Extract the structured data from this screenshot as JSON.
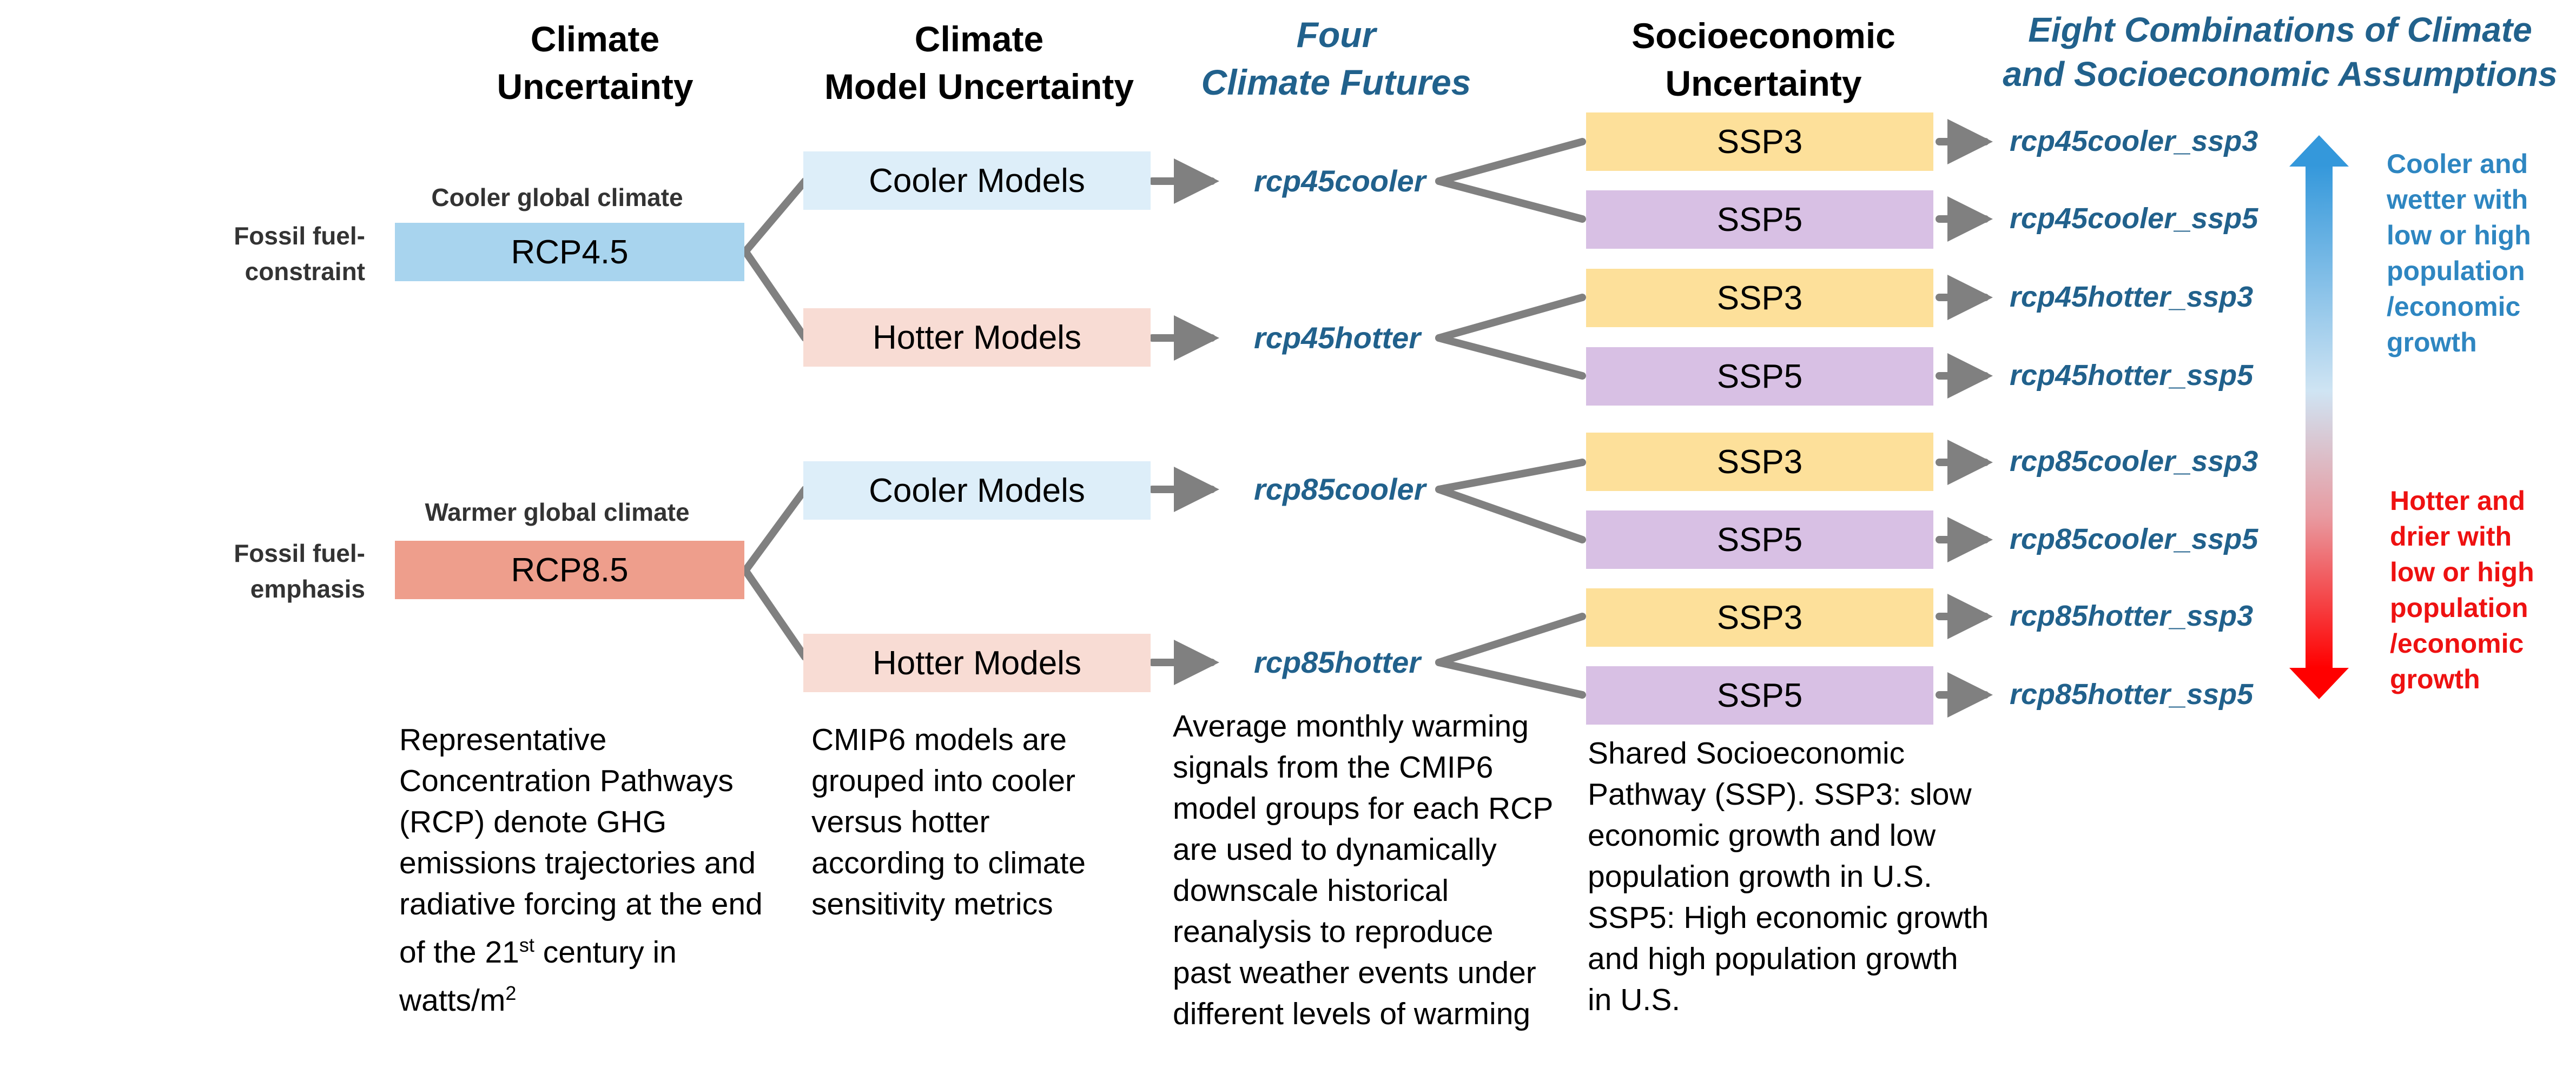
{
  "headers": {
    "climate": [
      "Climate",
      "Uncertainty"
    ],
    "model": [
      "Climate",
      "Model Uncertainty"
    ],
    "futures": [
      "Four",
      "Climate Futures"
    ],
    "socio": [
      "Socioeconomic",
      "Uncertainty"
    ],
    "combos": [
      "Eight Combinations of Climate",
      "and Socioeconomic Assumptions"
    ]
  },
  "rcp": {
    "rcp45": {
      "label": "RCP4.5",
      "above": "Cooler global climate",
      "side": [
        "Fossil fuel-",
        "constraint"
      ]
    },
    "rcp85": {
      "label": "RCP8.5",
      "above": "Warmer global climate",
      "side": [
        "Fossil fuel-",
        "emphasis"
      ]
    }
  },
  "models": {
    "cooler": "Cooler Models",
    "hotter": "Hotter Models"
  },
  "futures": [
    "rcp45cooler",
    "rcp45hotter",
    "rcp85cooler",
    "rcp85hotter"
  ],
  "ssp": {
    "ssp3": "SSP3",
    "ssp5": "SSP5"
  },
  "combinations": [
    "rcp45cooler_ssp3",
    "rcp45cooler_ssp5",
    "rcp45hotter_ssp3",
    "rcp45hotter_ssp5",
    "rcp85cooler_ssp3",
    "rcp85cooler_ssp5",
    "rcp85hotter_ssp3",
    "rcp85hotter_ssp5"
  ],
  "legend": {
    "cooler": [
      "Cooler and",
      "wetter with",
      "low or high",
      "population",
      "/economic",
      "growth"
    ],
    "hotter": [
      "Hotter and",
      "drier with",
      "low or high",
      "population",
      "/economic",
      "growth"
    ]
  },
  "descriptions": {
    "rcp": [
      "Representative",
      "Concentration Pathways",
      "(RCP) denote GHG",
      "emissions trajectories and",
      "radiative forcing at the end",
      "of the 21",
      "st",
      " century in",
      "watts/m",
      "2"
    ],
    "cmip": [
      "CMIP6 models are",
      "grouped into cooler",
      "versus hotter",
      "according to climate",
      "sensitivity metrics"
    ],
    "warming": [
      "Average monthly warming",
      "signals from the CMIP6",
      "model groups for each RCP",
      "are used to dynamically",
      "downscale historical",
      "reanalysis to reproduce",
      "past weather events under",
      "different levels of warming"
    ],
    "ssp": [
      "Shared Socioeconomic",
      "Pathway (SSP). SSP3: slow",
      "economic growth and low",
      "population growth in U.S.",
      "SSP5: High economic growth",
      "and high population growth",
      "in U.S."
    ]
  },
  "colors": {
    "line": "#808080",
    "title_blue": "#21618c",
    "cool_legend": "#2e86c1",
    "hot_legend": "#ee1111"
  }
}
